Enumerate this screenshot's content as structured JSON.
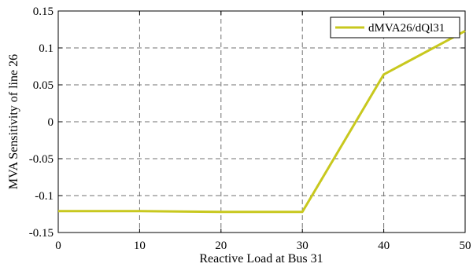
{
  "chart_data": {
    "type": "line",
    "title": "",
    "xlabel": "Reactive Load at Bus 31",
    "ylabel": "MVA Sensitivity of line 26",
    "xlim": [
      0,
      50
    ],
    "ylim": [
      -0.15,
      0.15
    ],
    "x_ticks": [
      "0",
      "10",
      "20",
      "30",
      "40",
      "50"
    ],
    "y_ticks": [
      "-0.15",
      "-0.1",
      "-0.05",
      "0",
      "0.05",
      "0.1",
      "0.15"
    ],
    "x_tick_values": [
      0,
      10,
      20,
      30,
      40,
      50
    ],
    "y_tick_values": [
      -0.15,
      -0.1,
      -0.05,
      0,
      0.05,
      0.1,
      0.15
    ],
    "grid": true,
    "legend_position": "top-right",
    "series": [
      {
        "name": "dMVA26/dQl31",
        "color": "#c8c81e",
        "x": [
          0,
          10,
          20,
          30,
          40,
          50
        ],
        "y": [
          -0.121,
          -0.121,
          -0.122,
          -0.122,
          0.064,
          0.123
        ]
      }
    ]
  }
}
